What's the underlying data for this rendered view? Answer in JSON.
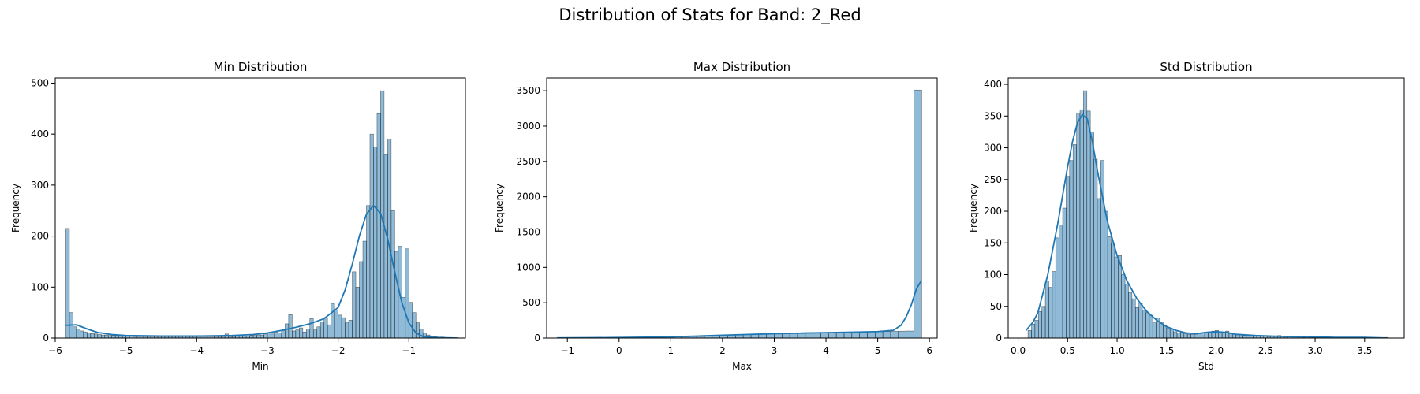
{
  "figure": {
    "title": "Distribution of Stats for Band: 2_Red"
  },
  "style": {
    "bar_fill": "#1f77b4",
    "bar_opacity": 0.5,
    "kde_color": "#1f77b4"
  },
  "chart_data": [
    {
      "type": "histogram",
      "title": "Min Distribution",
      "xlabel": "Min",
      "ylabel": "Frequency",
      "xlim": [
        -6.0,
        -0.2
      ],
      "ylim": [
        0,
        510
      ],
      "xticks": [
        -6,
        -5,
        -4,
        -3,
        -2,
        -1
      ],
      "xticklabels": [
        "−6",
        "−5",
        "−4",
        "−3",
        "−2",
        "−1"
      ],
      "yticks": [
        0,
        100,
        200,
        300,
        400,
        500
      ],
      "bins": [
        [
          -5.85,
          215
        ],
        [
          -5.8,
          50
        ],
        [
          -5.75,
          22
        ],
        [
          -5.7,
          18
        ],
        [
          -5.65,
          14
        ],
        [
          -5.6,
          12
        ],
        [
          -5.55,
          10
        ],
        [
          -5.5,
          9
        ],
        [
          -5.45,
          8
        ],
        [
          -5.4,
          7
        ],
        [
          -5.35,
          6
        ],
        [
          -5.3,
          6
        ],
        [
          -5.25,
          5
        ],
        [
          -5.2,
          5
        ],
        [
          -5.15,
          5
        ],
        [
          -5.1,
          4
        ],
        [
          -5.05,
          4
        ],
        [
          -5.0,
          4
        ],
        [
          -4.95,
          4
        ],
        [
          -4.9,
          3
        ],
        [
          -4.85,
          3
        ],
        [
          -4.8,
          3
        ],
        [
          -4.75,
          3
        ],
        [
          -4.7,
          3
        ],
        [
          -4.65,
          3
        ],
        [
          -4.6,
          3
        ],
        [
          -4.55,
          3
        ],
        [
          -4.5,
          3
        ],
        [
          -4.45,
          3
        ],
        [
          -4.4,
          3
        ],
        [
          -4.35,
          3
        ],
        [
          -4.3,
          3
        ],
        [
          -4.25,
          3
        ],
        [
          -4.2,
          4
        ],
        [
          -4.15,
          3
        ],
        [
          -4.1,
          3
        ],
        [
          -4.05,
          3
        ],
        [
          -4.0,
          3
        ],
        [
          -3.95,
          3
        ],
        [
          -3.9,
          3
        ],
        [
          -3.85,
          3
        ],
        [
          -3.8,
          3
        ],
        [
          -3.75,
          3
        ],
        [
          -3.7,
          3
        ],
        [
          -3.65,
          3
        ],
        [
          -3.6,
          8
        ],
        [
          -3.55,
          3
        ],
        [
          -3.5,
          3
        ],
        [
          -3.45,
          4
        ],
        [
          -3.4,
          4
        ],
        [
          -3.35,
          4
        ],
        [
          -3.3,
          4
        ],
        [
          -3.25,
          5
        ],
        [
          -3.2,
          5
        ],
        [
          -3.15,
          6
        ],
        [
          -3.1,
          6
        ],
        [
          -3.05,
          8
        ],
        [
          -3.0,
          10
        ],
        [
          -2.95,
          8
        ],
        [
          -2.9,
          12
        ],
        [
          -2.85,
          10
        ],
        [
          -2.8,
          15
        ],
        [
          -2.75,
          28
        ],
        [
          -2.7,
          46
        ],
        [
          -2.65,
          14
        ],
        [
          -2.6,
          16
        ],
        [
          -2.55,
          20
        ],
        [
          -2.5,
          12
        ],
        [
          -2.45,
          18
        ],
        [
          -2.4,
          38
        ],
        [
          -2.35,
          16
        ],
        [
          -2.3,
          22
        ],
        [
          -2.25,
          32
        ],
        [
          -2.2,
          40
        ],
        [
          -2.15,
          26
        ],
        [
          -2.1,
          68
        ],
        [
          -2.05,
          55
        ],
        [
          -2.0,
          45
        ],
        [
          -1.95,
          40
        ],
        [
          -1.9,
          30
        ],
        [
          -1.85,
          35
        ],
        [
          -1.8,
          130
        ],
        [
          -1.75,
          100
        ],
        [
          -1.7,
          150
        ],
        [
          -1.65,
          190
        ],
        [
          -1.6,
          260
        ],
        [
          -1.55,
          400
        ],
        [
          -1.5,
          375
        ],
        [
          -1.45,
          440
        ],
        [
          -1.4,
          485
        ],
        [
          -1.35,
          360
        ],
        [
          -1.3,
          390
        ],
        [
          -1.25,
          250
        ],
        [
          -1.2,
          170
        ],
        [
          -1.15,
          180
        ],
        [
          -1.1,
          80
        ],
        [
          -1.05,
          175
        ],
        [
          -1.0,
          70
        ],
        [
          -0.95,
          50
        ],
        [
          -0.9,
          30
        ],
        [
          -0.85,
          18
        ],
        [
          -0.8,
          10
        ],
        [
          -0.75,
          6
        ],
        [
          -0.7,
          4
        ],
        [
          -0.65,
          3
        ],
        [
          -0.6,
          2
        ],
        [
          -0.55,
          2
        ],
        [
          -0.5,
          1
        ],
        [
          -0.45,
          1
        ]
      ],
      "bin_width": 0.05,
      "kde": [
        [
          -5.85,
          25
        ],
        [
          -5.7,
          26
        ],
        [
          -5.55,
          18
        ],
        [
          -5.4,
          11
        ],
        [
          -5.2,
          7
        ],
        [
          -5.0,
          5
        ],
        [
          -4.5,
          4
        ],
        [
          -4.0,
          4
        ],
        [
          -3.5,
          5
        ],
        [
          -3.2,
          7
        ],
        [
          -3.0,
          10
        ],
        [
          -2.8,
          15
        ],
        [
          -2.6,
          21
        ],
        [
          -2.4,
          28
        ],
        [
          -2.2,
          38
        ],
        [
          -2.0,
          60
        ],
        [
          -1.9,
          95
        ],
        [
          -1.8,
          145
        ],
        [
          -1.7,
          200
        ],
        [
          -1.6,
          243
        ],
        [
          -1.5,
          260
        ],
        [
          -1.4,
          245
        ],
        [
          -1.3,
          195
        ],
        [
          -1.2,
          130
        ],
        [
          -1.1,
          70
        ],
        [
          -1.0,
          30
        ],
        [
          -0.9,
          10
        ],
        [
          -0.8,
          3
        ],
        [
          -0.6,
          1
        ],
        [
          -0.3,
          0
        ]
      ]
    },
    {
      "type": "histogram",
      "title": "Max Distribution",
      "xlabel": "Max",
      "ylabel": "Frequency",
      "xlim": [
        -1.4,
        6.15
      ],
      "ylim": [
        0,
        3680
      ],
      "xticks": [
        -1,
        0,
        1,
        2,
        3,
        4,
        5,
        6
      ],
      "xticklabels": [
        "−1",
        "0",
        "1",
        "2",
        "3",
        "4",
        "5",
        "6"
      ],
      "yticks": [
        0,
        500,
        1000,
        1500,
        2000,
        2500,
        3000,
        3500
      ],
      "bins": [
        [
          -1.2,
          2
        ],
        [
          -1.05,
          2
        ],
        [
          -0.9,
          3
        ],
        [
          -0.75,
          3
        ],
        [
          -0.6,
          4
        ],
        [
          -0.45,
          4
        ],
        [
          -0.3,
          5
        ],
        [
          -0.15,
          6
        ],
        [
          0.0,
          7
        ],
        [
          0.15,
          8
        ],
        [
          0.3,
          9
        ],
        [
          0.45,
          10
        ],
        [
          0.6,
          11
        ],
        [
          0.75,
          12
        ],
        [
          0.9,
          13
        ],
        [
          1.05,
          15
        ],
        [
          1.2,
          17
        ],
        [
          1.35,
          20
        ],
        [
          1.5,
          23
        ],
        [
          1.65,
          27
        ],
        [
          1.8,
          32
        ],
        [
          1.95,
          37
        ],
        [
          2.1,
          42
        ],
        [
          2.25,
          46
        ],
        [
          2.4,
          50
        ],
        [
          2.55,
          54
        ],
        [
          2.7,
          57
        ],
        [
          2.85,
          60
        ],
        [
          3.0,
          62
        ],
        [
          3.15,
          64
        ],
        [
          3.3,
          66
        ],
        [
          3.45,
          68
        ],
        [
          3.6,
          70
        ],
        [
          3.75,
          72
        ],
        [
          3.9,
          74
        ],
        [
          4.05,
          76
        ],
        [
          4.2,
          78
        ],
        [
          4.35,
          80
        ],
        [
          4.5,
          82
        ],
        [
          4.65,
          85
        ],
        [
          4.8,
          88
        ],
        [
          4.95,
          90
        ],
        [
          5.1,
          92
        ],
        [
          5.25,
          95
        ],
        [
          5.4,
          98
        ],
        [
          5.55,
          100
        ],
        [
          5.7,
          3510
        ]
      ],
      "bin_width": 0.15,
      "kde": [
        [
          -1.2,
          2
        ],
        [
          -0.5,
          5
        ],
        [
          0.0,
          8
        ],
        [
          0.5,
          12
        ],
        [
          1.0,
          18
        ],
        [
          1.5,
          28
        ],
        [
          2.0,
          40
        ],
        [
          2.5,
          52
        ],
        [
          3.0,
          62
        ],
        [
          3.5,
          70
        ],
        [
          4.0,
          77
        ],
        [
          4.5,
          84
        ],
        [
          5.0,
          92
        ],
        [
          5.3,
          110
        ],
        [
          5.45,
          180
        ],
        [
          5.55,
          300
        ],
        [
          5.65,
          470
        ],
        [
          5.75,
          700
        ],
        [
          5.85,
          820
        ]
      ]
    },
    {
      "type": "histogram",
      "title": "Std Distribution",
      "xlabel": "Std",
      "ylabel": "Frequency",
      "xlim": [
        -0.1,
        3.9
      ],
      "ylim": [
        0,
        410
      ],
      "xticks": [
        0.0,
        0.5,
        1.0,
        1.5,
        2.0,
        2.5,
        3.0,
        3.5
      ],
      "xticklabels": [
        "0.0",
        "0.5",
        "1.0",
        "1.5",
        "2.0",
        "2.5",
        "3.0",
        "3.5"
      ],
      "yticks": [
        0,
        50,
        100,
        150,
        200,
        250,
        300,
        350,
        400
      ],
      "bins": [
        [
          0.1,
          12
        ],
        [
          0.135,
          22
        ],
        [
          0.17,
          28
        ],
        [
          0.205,
          42
        ],
        [
          0.24,
          50
        ],
        [
          0.275,
          90
        ],
        [
          0.31,
          80
        ],
        [
          0.345,
          105
        ],
        [
          0.38,
          158
        ],
        [
          0.415,
          178
        ],
        [
          0.45,
          205
        ],
        [
          0.485,
          255
        ],
        [
          0.52,
          280
        ],
        [
          0.555,
          305
        ],
        [
          0.59,
          355
        ],
        [
          0.625,
          360
        ],
        [
          0.66,
          390
        ],
        [
          0.695,
          358
        ],
        [
          0.73,
          325
        ],
        [
          0.765,
          282
        ],
        [
          0.8,
          220
        ],
        [
          0.835,
          280
        ],
        [
          0.87,
          200
        ],
        [
          0.905,
          160
        ],
        [
          0.94,
          150
        ],
        [
          0.975,
          128
        ],
        [
          1.01,
          130
        ],
        [
          1.045,
          100
        ],
        [
          1.08,
          85
        ],
        [
          1.115,
          72
        ],
        [
          1.15,
          62
        ],
        [
          1.185,
          48
        ],
        [
          1.22,
          55
        ],
        [
          1.255,
          44
        ],
        [
          1.29,
          40
        ],
        [
          1.325,
          36
        ],
        [
          1.36,
          24
        ],
        [
          1.395,
          32
        ],
        [
          1.43,
          25
        ],
        [
          1.465,
          20
        ],
        [
          1.5,
          16
        ],
        [
          1.535,
          14
        ],
        [
          1.57,
          10
        ],
        [
          1.605,
          8
        ],
        [
          1.64,
          9
        ],
        [
          1.675,
          7
        ],
        [
          1.71,
          6
        ],
        [
          1.745,
          6
        ],
        [
          1.78,
          6
        ],
        [
          1.815,
          7
        ],
        [
          1.85,
          8
        ],
        [
          1.885,
          9
        ],
        [
          1.92,
          10
        ],
        [
          1.955,
          11
        ],
        [
          1.99,
          12
        ],
        [
          2.025,
          10
        ],
        [
          2.06,
          9
        ],
        [
          2.095,
          11
        ],
        [
          2.13,
          7
        ],
        [
          2.165,
          6
        ],
        [
          2.2,
          5
        ],
        [
          2.235,
          5
        ],
        [
          2.27,
          4
        ],
        [
          2.305,
          4
        ],
        [
          2.34,
          3
        ],
        [
          2.375,
          3
        ],
        [
          2.41,
          3
        ],
        [
          2.445,
          3
        ],
        [
          2.48,
          3
        ],
        [
          2.515,
          2
        ],
        [
          2.55,
          3
        ],
        [
          2.585,
          3
        ],
        [
          2.62,
          4
        ],
        [
          2.655,
          3
        ],
        [
          2.69,
          2
        ],
        [
          2.725,
          2
        ],
        [
          2.76,
          2
        ],
        [
          2.795,
          2
        ],
        [
          2.83,
          2
        ],
        [
          2.865,
          1
        ],
        [
          2.9,
          2
        ],
        [
          2.935,
          1
        ],
        [
          2.97,
          1
        ],
        [
          3.005,
          1
        ],
        [
          3.04,
          1
        ],
        [
          3.075,
          1
        ],
        [
          3.11,
          3
        ],
        [
          3.145,
          1
        ],
        [
          3.18,
          1
        ],
        [
          3.215,
          1
        ],
        [
          3.25,
          1
        ],
        [
          3.285,
          1
        ],
        [
          3.32,
          1
        ],
        [
          3.355,
          1
        ],
        [
          3.39,
          1
        ],
        [
          3.425,
          1
        ],
        [
          3.46,
          1
        ],
        [
          3.495,
          1
        ],
        [
          3.53,
          1
        ],
        [
          3.565,
          1
        ],
        [
          3.6,
          1
        ],
        [
          3.635,
          1
        ],
        [
          3.67,
          1
        ],
        [
          3.705,
          1
        ]
      ],
      "bin_width": 0.035,
      "kde": [
        [
          0.08,
          12
        ],
        [
          0.15,
          25
        ],
        [
          0.2,
          40
        ],
        [
          0.3,
          100
        ],
        [
          0.4,
          180
        ],
        [
          0.5,
          270
        ],
        [
          0.55,
          310
        ],
        [
          0.6,
          340
        ],
        [
          0.65,
          352
        ],
        [
          0.7,
          345
        ],
        [
          0.75,
          310
        ],
        [
          0.8,
          265
        ],
        [
          0.85,
          225
        ],
        [
          0.9,
          185
        ],
        [
          1.0,
          130
        ],
        [
          1.1,
          90
        ],
        [
          1.2,
          62
        ],
        [
          1.3,
          42
        ],
        [
          1.4,
          28
        ],
        [
          1.5,
          18
        ],
        [
          1.6,
          12
        ],
        [
          1.7,
          8
        ],
        [
          1.8,
          7
        ],
        [
          1.9,
          9
        ],
        [
          2.0,
          10
        ],
        [
          2.1,
          9
        ],
        [
          2.2,
          6
        ],
        [
          2.4,
          4
        ],
        [
          2.6,
          3
        ],
        [
          2.8,
          2
        ],
        [
          3.0,
          2
        ],
        [
          3.2,
          1
        ],
        [
          3.5,
          1
        ],
        [
          3.72,
          0
        ]
      ]
    }
  ]
}
